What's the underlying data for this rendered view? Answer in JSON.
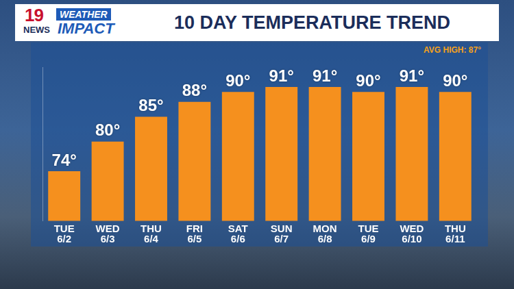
{
  "chart_data": {
    "type": "bar",
    "title": "10 DAY TEMPERATURE TREND",
    "logo": [
      "19",
      "NEWS",
      "WEATHER",
      "IMPACT"
    ],
    "annotation": "AVG HIGH: 87°",
    "categories": [
      "TUE 6/2",
      "WED 6/3",
      "THU 6/4",
      "FRI 6/5",
      "SAT 6/6",
      "SUN 6/7",
      "MON 6/8",
      "TUE 6/9",
      "WED 6/10",
      "THU 6/11"
    ],
    "values": [
      74,
      80,
      85,
      88,
      90,
      91,
      91,
      90,
      91,
      90
    ],
    "value_labels": [
      "74°",
      "80°",
      "85°",
      "88°",
      "90°",
      "91°",
      "91°",
      "90°",
      "91°",
      "90°"
    ],
    "color": "#f5901e",
    "ylim": [
      64,
      95
    ],
    "grid": false,
    "data_labels": true,
    "tick_labels": "x"
  }
}
